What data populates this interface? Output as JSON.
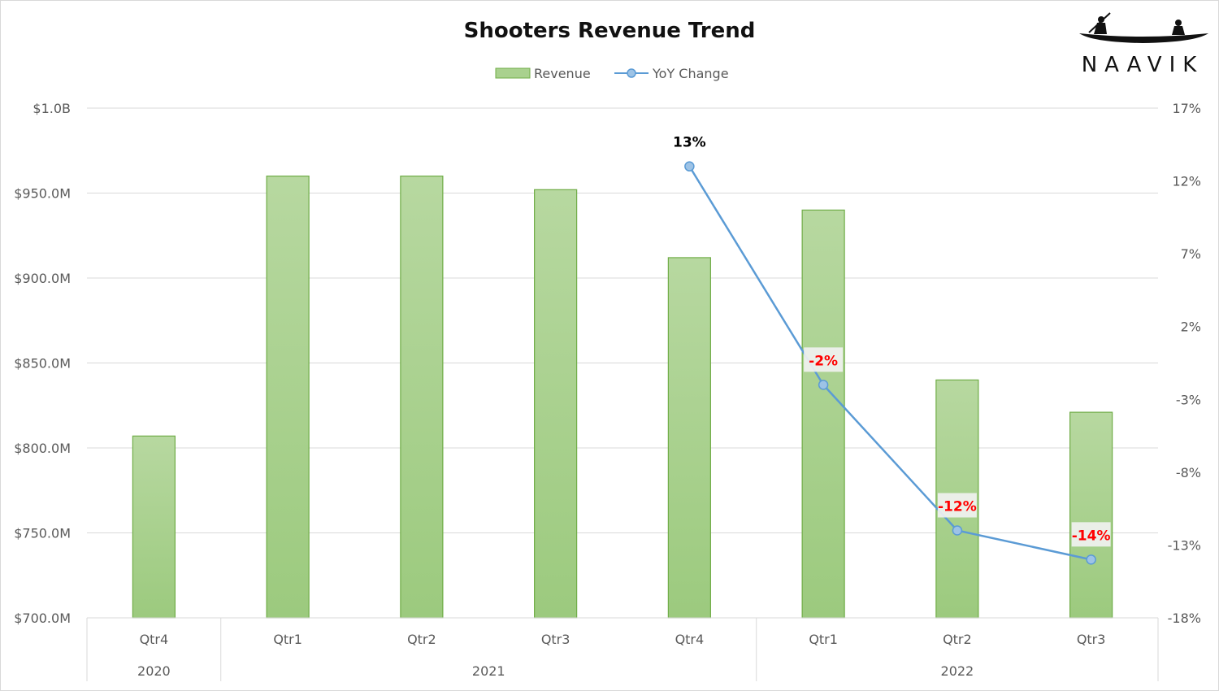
{
  "chart_data": {
    "type": "bar",
    "title": "Shooters Revenue Trend",
    "categories": [
      "Qtr4",
      "Qtr1",
      "Qtr2",
      "Qtr3",
      "Qtr4",
      "Qtr1",
      "Qtr2",
      "Qtr3"
    ],
    "year_groups": [
      {
        "label": "2020",
        "count": 1
      },
      {
        "label": "2021",
        "count": 4
      },
      {
        "label": "2022",
        "count": 3
      }
    ],
    "series": [
      {
        "name": "Revenue",
        "type": "bar",
        "axis": "left",
        "color": "#a9d18e",
        "border": "#70ad47",
        "values": [
          807,
          960,
          960,
          952,
          912,
          940,
          840,
          821
        ]
      },
      {
        "name": "YoY Change",
        "type": "line",
        "axis": "right",
        "color": "#5b9bd5",
        "values": [
          null,
          null,
          null,
          null,
          13,
          -2,
          -12,
          -14
        ]
      }
    ],
    "data_labels": [
      "",
      "",
      "",
      "",
      "13%",
      "-2%",
      "-12%",
      "-14%"
    ],
    "y_left": {
      "min": 700,
      "max": 1000,
      "ticks": [
        "$700.0M",
        "$750.0M",
        "$800.0M",
        "$850.0M",
        "$900.0M",
        "$950.0M",
        "$1.0B"
      ]
    },
    "y_right": {
      "min": -18,
      "max": 17,
      "ticks": [
        "-18%",
        "-13%",
        "-8%",
        "-3%",
        "2%",
        "7%",
        "12%",
        "17%"
      ]
    },
    "legend_position": "top",
    "grid": true
  },
  "logo": {
    "text": "NAAVIK"
  }
}
